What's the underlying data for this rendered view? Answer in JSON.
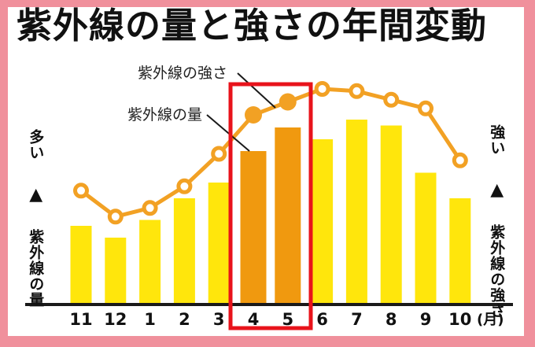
{
  "title": "紫外線の量と強さの年間変動",
  "annotations": {
    "line_label": "紫外線の強さ",
    "bar_label": "紫外線の量"
  },
  "y_axis_left": {
    "direction_label": "多い",
    "arrow_icon": "▲",
    "series_label": "紫外線の量"
  },
  "y_axis_right": {
    "direction_label": "強い",
    "arrow_icon": "▲",
    "series_label": "紫外線の強さ"
  },
  "x_axis": {
    "unit_suffix": "(月)"
  },
  "colors": {
    "border_pink": "#F0909C",
    "background": "#FFFFFF",
    "bar_yellow": "#FFE60C",
    "bar_orange_highlight": "#F0990F",
    "line_orange": "#F2A124",
    "highlight_box_red": "#E8131B",
    "axis_black": "#1A1A1A",
    "text_black": "#111111"
  },
  "chart_data": {
    "type": "combo-bar-line",
    "categories": [
      "11",
      "12",
      "1",
      "2",
      "3",
      "4",
      "5",
      "6",
      "7",
      "8",
      "9",
      "10"
    ],
    "series": [
      {
        "name": "紫外線の量",
        "type": "bar",
        "values": [
          40,
          34,
          43,
          54,
          62,
          78,
          90,
          84,
          94,
          91,
          67,
          54
        ],
        "highlighted_categories": [
          "4",
          "5"
        ]
      },
      {
        "name": "紫外線の強さ",
        "type": "line",
        "values": [
          53,
          41,
          45,
          55,
          70,
          88,
          94,
          100,
          99,
          95,
          91,
          67
        ],
        "filled_marker_categories": [
          "4",
          "5"
        ]
      }
    ],
    "highlight_range": {
      "categories": [
        "4",
        "5"
      ],
      "style": "red outline box"
    },
    "title": "紫外線の量と強さの年間変動",
    "xlabel": "月",
    "ylabel_left": "紫外線の量(多い↑)",
    "ylabel_right": "紫外線の強さ(強い↑)",
    "ylim": [
      0,
      100
    ],
    "value_scale": "relative 0-100, no numeric tick labels shown",
    "grid": false,
    "legend": "inline annotation labels with black pointer lines"
  }
}
